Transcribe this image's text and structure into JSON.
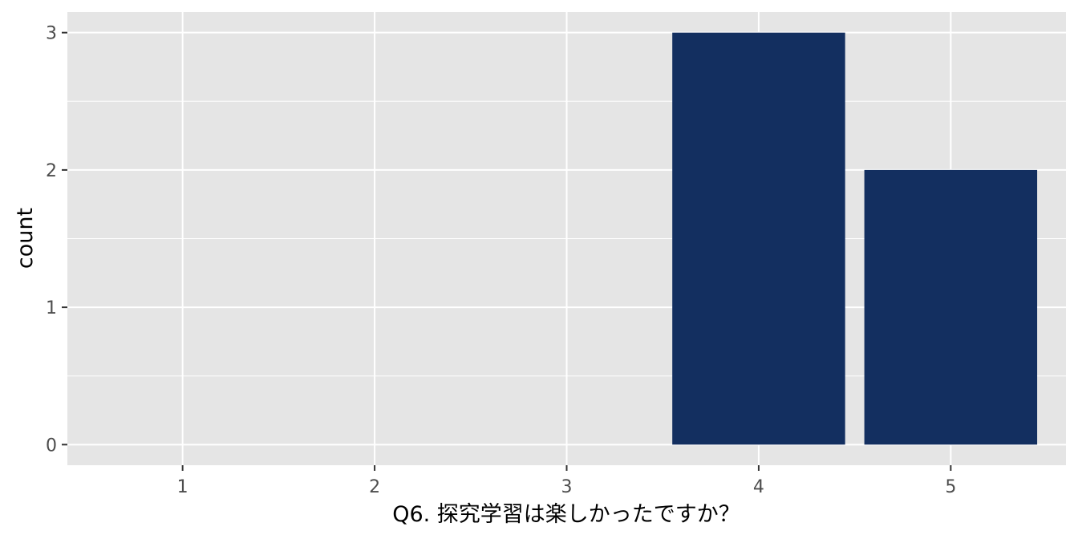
{
  "chart_data": {
    "type": "bar",
    "title": "",
    "xlabel": "Q6. 探究学習は楽しかったですか？",
    "ylabel": "count",
    "x_ticks": [
      "1",
      "2",
      "3",
      "4",
      "5"
    ],
    "y_ticks": [
      "0",
      "1",
      "2",
      "3"
    ],
    "xlim": [
      0.4,
      5.6
    ],
    "ylim": [
      -0.15,
      3.15
    ],
    "categories": [
      4,
      5
    ],
    "values": [
      3,
      2
    ],
    "bar_width": 0.9,
    "bar_color": "#132f60",
    "panel_background": "#e5e5e5",
    "grid": true,
    "grid_color": "#ffffff"
  }
}
